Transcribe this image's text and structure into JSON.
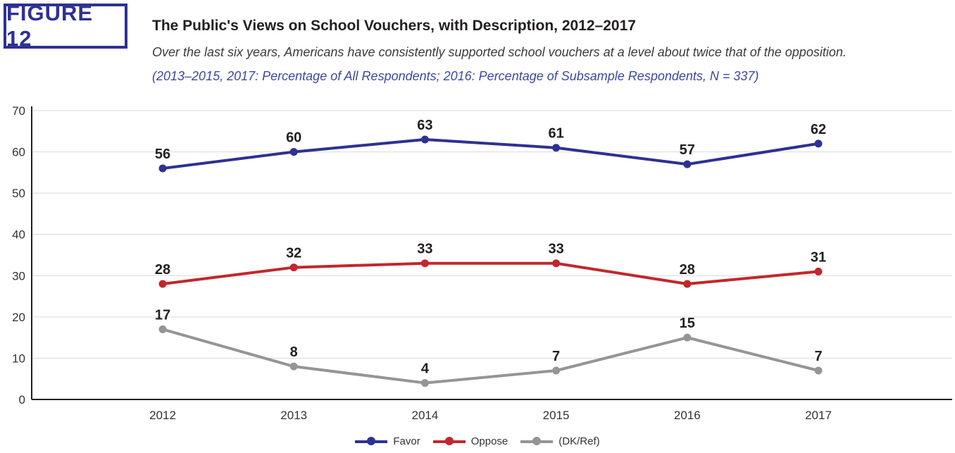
{
  "figure_label": "FIGURE 12",
  "title": "The Public's Views on School Vouchers, with Description, 2012–2017",
  "subtitle": "Over the last six years, Americans have consistently supported school vouchers at a level about twice that of the opposition.",
  "subtitle2": "(2013–2015, 2017: Percentage of All Respondents; 2016: Percentage of Subsample Respondents, N = 337)",
  "colors": {
    "favor": "#2e3192",
    "oppose": "#c1272d",
    "dk": "#959595",
    "accent": "#2e3192"
  },
  "chart_data": {
    "type": "line",
    "x": [
      "2012",
      "2013",
      "2014",
      "2015",
      "2016",
      "2017"
    ],
    "ylim": [
      0,
      70
    ],
    "yticks": [
      "0",
      "10",
      "20",
      "30",
      "40",
      "50",
      "60",
      "70"
    ],
    "grid": true,
    "legend_position": "bottom-center",
    "series": [
      {
        "name": "Favor",
        "values": [
          56,
          60,
          63,
          61,
          57,
          62
        ],
        "labels": [
          "56",
          "60",
          "63",
          "61",
          "57",
          "62"
        ],
        "color": "#2e3192"
      },
      {
        "name": "Oppose",
        "values": [
          28,
          32,
          33,
          33,
          28,
          31
        ],
        "labels": [
          "28",
          "32",
          "33",
          "33",
          "28",
          "31"
        ],
        "color": "#c1272d"
      },
      {
        "name": "(DK/Ref)",
        "values": [
          17,
          8,
          4,
          7,
          15,
          7
        ],
        "labels": [
          "17",
          "8",
          "4",
          "7",
          "15",
          "7"
        ],
        "color": "#959595"
      }
    ]
  }
}
